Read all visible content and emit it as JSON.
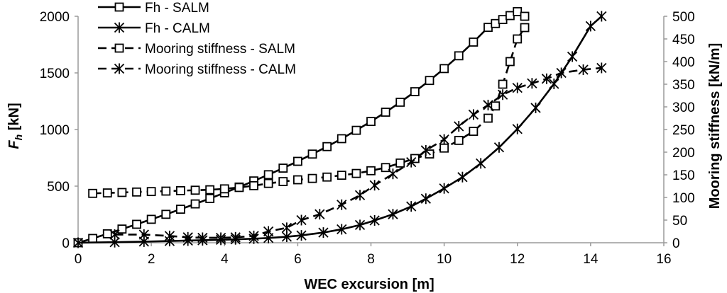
{
  "chart_data": {
    "type": "line",
    "title": "",
    "xlabel": "WEC excursion [m]",
    "ylabel_left": "F_h [kN]",
    "ylabel_left_main": "F",
    "ylabel_left_sub": "h",
    "ylabel_left_unit": " [kN]",
    "ylabel_right": "Mooring stiffness [kN/m]",
    "xlim": [
      0,
      16
    ],
    "ylim_left": [
      0,
      2000
    ],
    "ylim_right": [
      0,
      500
    ],
    "x_ticks": [
      "0",
      "2",
      "4",
      "6",
      "8",
      "10",
      "12",
      "14",
      "16"
    ],
    "y_left_ticks": [
      "0",
      "500",
      "1000",
      "1500",
      "2000"
    ],
    "y_right_ticks": [
      "0",
      "50",
      "100",
      "150",
      "200",
      "250",
      "300",
      "350",
      "400",
      "450",
      "500"
    ],
    "legend_position": "top-left",
    "series": [
      {
        "name": "Fh - SALM",
        "axis": "left",
        "marker": "square",
        "dashed": false,
        "x": [
          0,
          0.4,
          0.8,
          1.2,
          1.6,
          2.0,
          2.4,
          2.8,
          3.2,
          3.6,
          4.0,
          4.4,
          4.8,
          5.2,
          5.6,
          6.0,
          6.4,
          6.8,
          7.2,
          7.6,
          8.0,
          8.4,
          8.8,
          9.2,
          9.6,
          10.0,
          10.4,
          10.8,
          11.2,
          11.4,
          11.6,
          11.8,
          12.0,
          12.2
        ],
        "y": [
          0,
          38,
          79,
          121,
          163,
          207,
          251,
          296,
          343,
          391,
          441,
          492,
          546,
          601,
          659,
          719,
          783,
          849,
          919,
          993,
          1071,
          1153,
          1241,
          1334,
          1433,
          1538,
          1651,
          1772,
          1902,
          1936,
          1971,
          2006,
          2041,
          2000
        ]
      },
      {
        "name": "Fh - CALM",
        "axis": "left",
        "marker": "asterisk",
        "dashed": false,
        "x": [
          0,
          1.0,
          1.8,
          2.5,
          3.0,
          3.4,
          3.9,
          4.3,
          4.8,
          5.2,
          5.7,
          6.1,
          6.7,
          7.2,
          7.7,
          8.1,
          8.6,
          9.1,
          9.5,
          10.0,
          10.5,
          11.0,
          11.5,
          12.0,
          12.5,
          13.0,
          13.5,
          14.0,
          14.3
        ],
        "y": [
          0,
          5,
          10,
          15,
          19,
          22,
          26,
          30,
          36,
          42,
          53,
          65,
          90,
          119,
          157,
          197,
          252,
          321,
          389,
          480,
          580,
          701,
          842,
          1005,
          1191,
          1403,
          1644,
          1913,
          2000
        ]
      },
      {
        "name": "Mooring stiffness  - SALM",
        "axis": "right",
        "marker": "square",
        "dashed": true,
        "x": [
          0.4,
          0.8,
          1.2,
          1.6,
          2.0,
          2.4,
          2.8,
          3.2,
          3.6,
          4.0,
          4.4,
          4.8,
          5.2,
          5.6,
          6.0,
          6.4,
          6.8,
          7.2,
          7.6,
          8.0,
          8.4,
          8.8,
          9.2,
          9.6,
          10.0,
          10.4,
          10.8,
          11.2,
          11.4,
          11.6,
          11.8,
          12.0,
          12.2
        ],
        "y": [
          109,
          110,
          111,
          112,
          113,
          114,
          115,
          116,
          117,
          119,
          122,
          126,
          131,
          135,
          139,
          142,
          145,
          149,
          153,
          159,
          166,
          176,
          186,
          196,
          209,
          226,
          246,
          275,
          302,
          350,
          400,
          450,
          475
        ]
      },
      {
        "name": "Mooring stiffness  - CALM",
        "axis": "right",
        "marker": "asterisk",
        "dashed": true,
        "x": [
          1.0,
          1.8,
          2.5,
          3.0,
          3.4,
          3.9,
          4.3,
          4.8,
          5.2,
          5.7,
          6.1,
          6.6,
          7.2,
          7.7,
          8.1,
          8.6,
          9.1,
          9.5,
          10.0,
          10.4,
          10.8,
          11.2,
          11.6,
          12.0,
          12.4,
          12.8,
          13.2,
          13.8,
          14.3
        ],
        "y": [
          18,
          18,
          15,
          12,
          11,
          11,
          12,
          15,
          25,
          33,
          50,
          63,
          84,
          105,
          127,
          152,
          178,
          204,
          228,
          257,
          283,
          304,
          327,
          342,
          352,
          362,
          375,
          382,
          386
        ]
      }
    ]
  }
}
